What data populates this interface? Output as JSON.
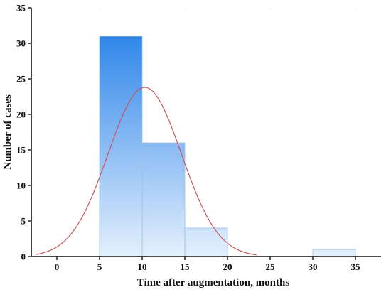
{
  "chart_data": {
    "type": "bar",
    "subtype": "histogram",
    "xlabel": "Time after augmentation, months",
    "ylabel": "Number of cases",
    "xlim": [
      -3,
      38
    ],
    "ylim": [
      0,
      35
    ],
    "x_ticks": [
      0,
      5,
      10,
      15,
      20,
      25,
      30,
      35
    ],
    "y_ticks": [
      0,
      5,
      10,
      15,
      20,
      25,
      30,
      35
    ],
    "bins": [
      {
        "start": 5,
        "end": 10,
        "value": 31
      },
      {
        "start": 10,
        "end": 15,
        "value": 16
      },
      {
        "start": 15,
        "end": 20,
        "value": 4
      },
      {
        "start": 30,
        "end": 35,
        "value": 1
      }
    ],
    "normal_curve": {
      "mean": 10.3,
      "sd": 4.3,
      "peak": 23.8,
      "color": "#c9555a"
    },
    "bar_color_top": "#2f86ea",
    "bar_color_bottom": "#e4f0fd",
    "grid": false,
    "legend": "none"
  }
}
